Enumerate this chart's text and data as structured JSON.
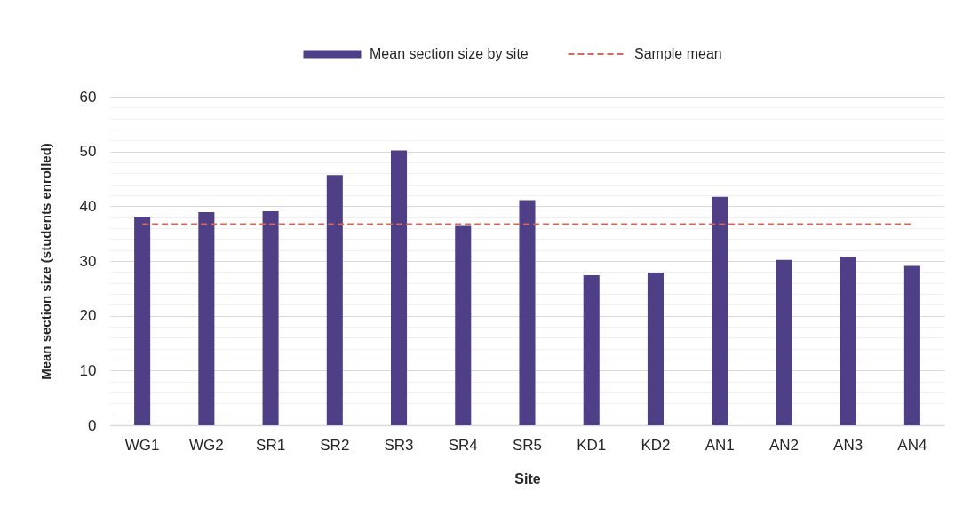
{
  "chart_data": {
    "type": "bar",
    "xlabel": "Site",
    "ylabel": "Mean section size (students enrolled)",
    "categories": [
      "WG1",
      "WG2",
      "SR1",
      "SR2",
      "SR3",
      "SR4",
      "SR5",
      "KD1",
      "KD2",
      "AN1",
      "AN2",
      "AN3",
      "AN4"
    ],
    "series": [
      {
        "name": "Mean section size by site",
        "color": "#4e3f86",
        "values": [
          38.1,
          38.9,
          39.1,
          45.7,
          50.2,
          36.4,
          41.1,
          27.4,
          27.9,
          41.7,
          30.2,
          30.8,
          29.1
        ]
      },
      {
        "name": "Sample mean",
        "type": "line",
        "line_style": "dashed",
        "color": "#d2675c",
        "values": [
          36.7,
          36.7,
          36.7,
          36.7,
          36.7,
          36.7,
          36.7,
          36.7,
          36.7,
          36.7,
          36.7,
          36.7,
          36.7
        ]
      }
    ],
    "ylim": [
      0,
      60
    ],
    "yticks": [
      0,
      {
        "value": 2,
        "label": null
      },
      {
        "value": 4,
        "label": null
      },
      {
        "value": 6,
        "label": null
      },
      {
        "value": 8,
        "label": null
      },
      10,
      {
        "value": 12,
        "label": null
      },
      {
        "value": 14,
        "label": null
      },
      {
        "value": 16,
        "label": null
      },
      {
        "value": 18,
        "label": null
      },
      20,
      {
        "value": 22,
        "label": null
      },
      {
        "value": 24,
        "label": null
      },
      {
        "value": 26,
        "label": null
      },
      {
        "value": 28,
        "label": null
      },
      30,
      {
        "value": 32,
        "label": null
      },
      {
        "value": 34,
        "label": null
      },
      {
        "value": 36,
        "label": null
      },
      {
        "value": 38,
        "label": null
      },
      40,
      {
        "value": 42,
        "label": null
      },
      {
        "value": 44,
        "label": null
      },
      {
        "value": 46,
        "label": null
      },
      {
        "value": 48,
        "label": null
      },
      50,
      {
        "value": 52,
        "label": null
      },
      {
        "value": 54,
        "label": null
      },
      {
        "value": 56,
        "label": null
      },
      {
        "value": 58,
        "label": null
      },
      60
    ],
    "grid": "y",
    "legend": "top"
  }
}
